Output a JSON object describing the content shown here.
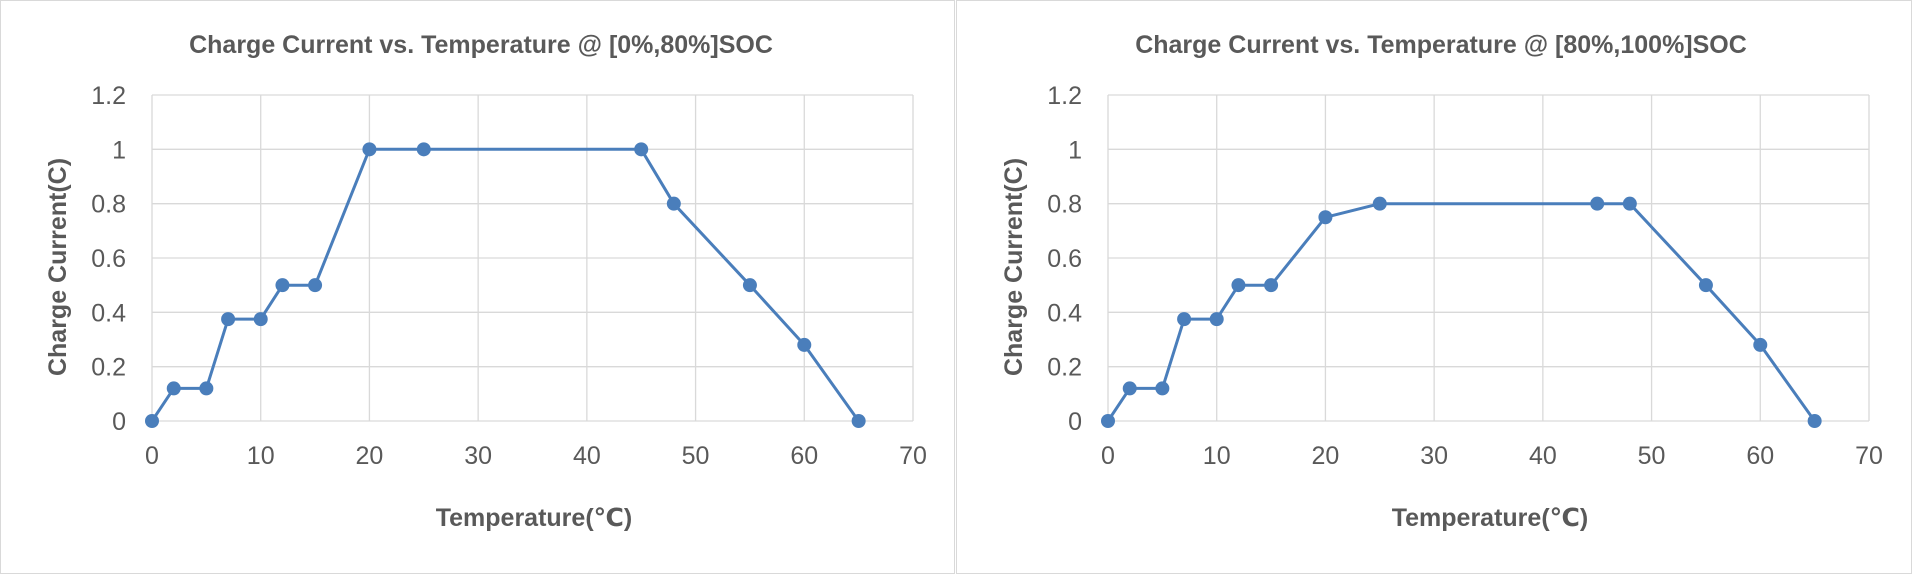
{
  "chart_data": [
    {
      "type": "line",
      "title": "Charge Current vs. Temperature @ [0%,80%]SOC",
      "xlabel": "Temperature(℃)",
      "ylabel": "Charge Current(C)",
      "xlim": [
        0,
        70
      ],
      "ylim": [
        0,
        1.2
      ],
      "x_ticks": [
        "0",
        "10",
        "20",
        "30",
        "40",
        "50",
        "60",
        "70"
      ],
      "y_ticks": [
        "0",
        "0.2",
        "0.4",
        "0.6",
        "0.8",
        "1",
        "1.2"
      ],
      "grid": true,
      "series": [
        {
          "color": "#4a7ebb",
          "x": [
            0,
            2,
            5,
            7,
            10,
            12,
            15,
            20,
            25,
            45,
            48,
            55,
            60,
            65
          ],
          "y": [
            0,
            0.12,
            0.12,
            0.375,
            0.375,
            0.5,
            0.5,
            1,
            1,
            1,
            0.8,
            0.5,
            0.28,
            0
          ]
        }
      ]
    },
    {
      "type": "line",
      "title": "Charge Current vs. Temperature @ [80%,100%]SOC",
      "xlabel": "Temperature(℃)",
      "ylabel": "Charge Current(C)",
      "xlim": [
        0,
        70
      ],
      "ylim": [
        0,
        1.2
      ],
      "x_ticks": [
        "0",
        "10",
        "20",
        "30",
        "40",
        "50",
        "60",
        "70"
      ],
      "y_ticks": [
        "0",
        "0.2",
        "0.4",
        "0.6",
        "0.8",
        "1",
        "1.2"
      ],
      "grid": true,
      "series": [
        {
          "color": "#4a7ebb",
          "x": [
            0,
            2,
            5,
            7,
            10,
            12,
            15,
            20,
            25,
            45,
            48,
            55,
            60,
            65
          ],
          "y": [
            0,
            0.12,
            0.12,
            0.375,
            0.375,
            0.5,
            0.5,
            0.75,
            0.8,
            0.8,
            0.8,
            0.5,
            0.28,
            0
          ]
        }
      ]
    }
  ]
}
